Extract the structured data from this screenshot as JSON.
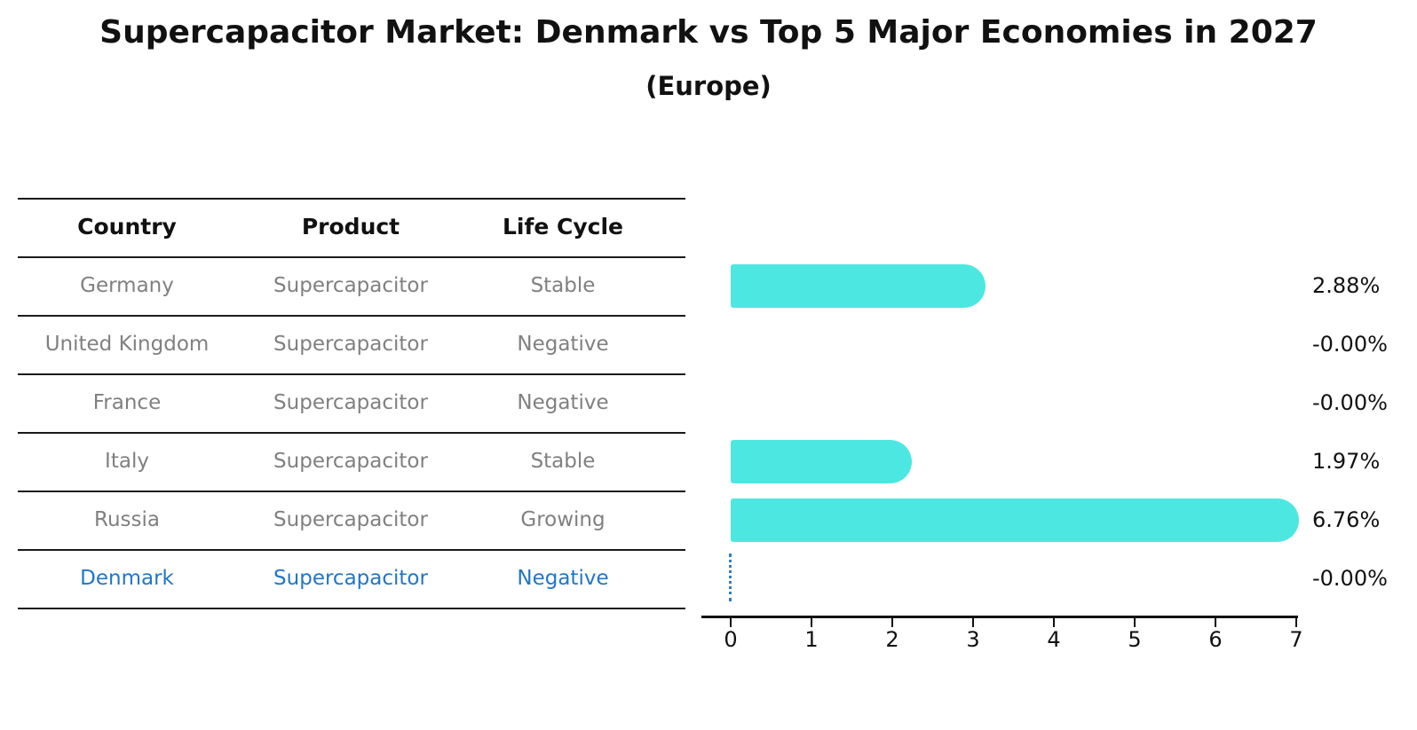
{
  "title": "Supercapacitor Market: Denmark vs Top 5 Major Economies in 2027",
  "subtitle": "(Europe)",
  "table": {
    "headers": [
      "Country",
      "Product",
      "Life Cycle"
    ],
    "rows": [
      {
        "country": "Germany",
        "product": "Supercapacitor",
        "life_cycle": "Stable",
        "highlight": false
      },
      {
        "country": "United Kingdom",
        "product": "Supercapacitor",
        "life_cycle": "Negative",
        "highlight": false
      },
      {
        "country": "France",
        "product": "Supercapacitor",
        "life_cycle": "Negative",
        "highlight": false
      },
      {
        "country": "Italy",
        "product": "Supercapacitor",
        "life_cycle": "Stable",
        "highlight": false
      },
      {
        "country": "Russia",
        "product": "Supercapacitor",
        "life_cycle": "Growing",
        "highlight": false
      },
      {
        "country": "Denmark",
        "product": "Supercapacitor",
        "life_cycle": "Negative",
        "highlight": true
      }
    ]
  },
  "chart_data": {
    "type": "bar",
    "orientation": "horizontal",
    "title": "Supercapacitor Market: Denmark vs Top 5 Major Economies in 2027",
    "subtitle": "(Europe)",
    "categories": [
      "Germany",
      "United Kingdom",
      "France",
      "Italy",
      "Russia",
      "Denmark"
    ],
    "values": [
      2.88,
      -0.0,
      -0.0,
      1.97,
      6.76,
      -0.0
    ],
    "value_labels": [
      "2.88%",
      "-0.00%",
      "-0.00%",
      "1.97%",
      "6.76%",
      "-0.00%"
    ],
    "x_ticks": [
      "0",
      "1",
      "2",
      "3",
      "4",
      "5",
      "6",
      "7"
    ],
    "xlim": [
      0,
      7
    ],
    "grid": false,
    "legend": null,
    "bar_color": "#4CE7E0",
    "highlight_color": "#2176c7",
    "highlight_index": 5,
    "zero_marker_style": "dotted-vertical-line"
  }
}
